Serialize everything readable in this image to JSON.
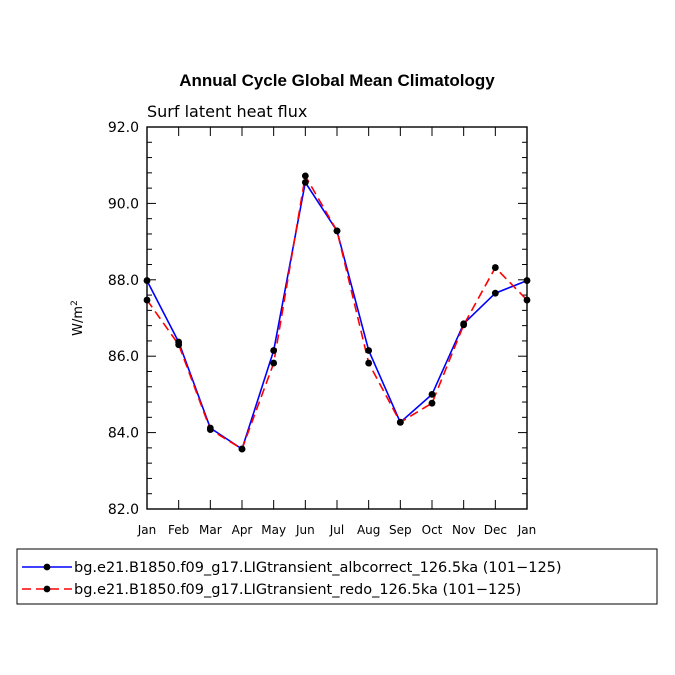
{
  "chart_data": {
    "type": "line",
    "title": "Annual Cycle Global Mean Climatology",
    "subtitle": "Surf latent heat flux",
    "xlabel": "",
    "ylabel": "W/m",
    "ylabel_superscript": "2",
    "ylim": [
      82.0,
      92.0
    ],
    "yticks": [
      "82.0",
      "84.0",
      "86.0",
      "88.0",
      "90.0",
      "92.0"
    ],
    "ytick_values": [
      82,
      84,
      86,
      88,
      90,
      92
    ],
    "categories": [
      "Jan",
      "Feb",
      "Mar",
      "Apr",
      "May",
      "Jun",
      "Jul",
      "Aug",
      "Sep",
      "Oct",
      "Nov",
      "Dec",
      "Jan"
    ],
    "series": [
      {
        "name": "bg.e21.B1850.f09_g17.LIGtransient_albcorrect_126.5ka (101−125)",
        "color": "#0000ff",
        "dash": "solid",
        "values": [
          87.98,
          86.37,
          84.12,
          83.57,
          86.15,
          90.55,
          89.28,
          86.15,
          84.27,
          85.0,
          86.85,
          87.65,
          87.98
        ]
      },
      {
        "name": "bg.e21.B1850.f09_g17.LIGtransient_redo_126.5ka (101−125)",
        "color": "#ff0000",
        "dash": "dashed",
        "values": [
          87.47,
          86.3,
          84.08,
          83.57,
          85.82,
          90.72,
          89.28,
          85.82,
          84.27,
          84.77,
          86.82,
          88.32,
          87.47
        ]
      }
    ],
    "grid": false,
    "legend": "bottom"
  }
}
